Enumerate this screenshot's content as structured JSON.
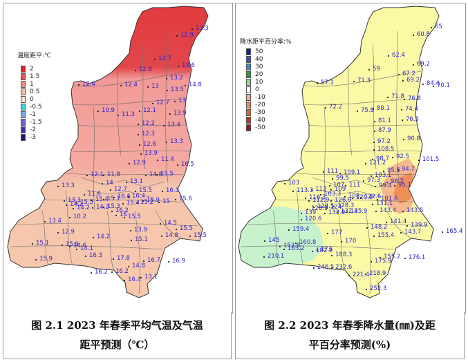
{
  "maps": [
    {
      "legend": {
        "title": "温度距平:℃",
        "items": [
          {
            "label": "2",
            "color": "#d8232a"
          },
          {
            "label": "1.5",
            "color": "#e8535a"
          },
          {
            "label": "1",
            "color": "#f08f86"
          },
          {
            "label": "0.5",
            "color": "#f6b9a6"
          },
          {
            "label": "0",
            "color": "#fbe0cf"
          },
          {
            "label": "-0.5",
            "color": "#3fd0e6"
          },
          {
            "label": "-1",
            "color": "#7aa8e8"
          },
          {
            "label": "-1.5",
            "color": "#6a66cc"
          },
          {
            "label": "-2",
            "color": "#3c32aa"
          },
          {
            "label": "-3",
            "color": "#1a1478"
          }
        ]
      },
      "values": [
        "13.3",
        "12.9",
        "12.7",
        "13.6",
        "12.8",
        "12.4",
        "12.4",
        "13.2",
        "14.8",
        "13",
        "13.5",
        "12.7",
        "13",
        "10.9",
        "11.3",
        "12.1",
        "13.9",
        "13.4",
        "12.2",
        "12.3",
        "12.6",
        "13.3",
        "13.9",
        "11.4",
        "12.9",
        "16.5",
        "12.1",
        "11.8",
        "14.8",
        "15.5",
        "13.3",
        "13.1",
        "14",
        "12.7",
        "16.3",
        "11.6",
        "15.5",
        "16.4",
        "13.3",
        "15.4",
        "14.2",
        "15.5",
        "14.2",
        "15.1",
        "16.6",
        "15.9",
        "15.3",
        "16.2",
        "15.4",
        "15.2",
        "15",
        "15.6",
        "14.2",
        "10.2",
        "16",
        "15.5",
        "13.4",
        "14.5",
        "12.9",
        "13.9",
        "15.5",
        "14.2",
        "15.1",
        "14.8",
        "15.5",
        "15.1",
        "15.9",
        "14.6",
        "14.1",
        "15.9",
        "16.3",
        "17.8",
        "16.7",
        "16.9",
        "14.8",
        "16.2",
        "16.2",
        "16.4",
        "13.1"
      ],
      "caption_line1": "图 2.1   2023 年春季平均气温及气温",
      "caption_line2": "距平预测（℃）"
    },
    {
      "legend": {
        "title": "降水距平百分率:%",
        "items": [
          {
            "label": "50",
            "color": "#1020a0"
          },
          {
            "label": "40",
            "color": "#2a52c8"
          },
          {
            "label": "30",
            "color": "#3a8ad8"
          },
          {
            "label": "20",
            "color": "#2aa02a"
          },
          {
            "label": "10",
            "color": "#8ad88a"
          },
          {
            "label": "0",
            "color": "#ffffff"
          },
          {
            "label": "-10",
            "color": "#f5b48a"
          },
          {
            "label": "-20",
            "color": "#f08a4a"
          },
          {
            "label": "-30",
            "color": "#e8602a"
          },
          {
            "label": "-40",
            "color": "#d03018"
          },
          {
            "label": "-50",
            "color": "#a01010"
          }
        ]
      },
      "values": [
        "65",
        "60.8",
        "62.4",
        "69.2",
        "59",
        "67.2",
        "71.3",
        "69.2",
        "57.1",
        "84.4",
        "70.1",
        "71.8",
        "76.8",
        "72.2",
        "75.8",
        "80.1",
        "74.4",
        "81.1",
        "76.5",
        "87.9",
        "90.8",
        "97.2",
        "108.5",
        "92.5",
        "98.7",
        "101.5",
        "121.2",
        "111",
        "109.1",
        "103.1",
        "95.5",
        "99.5",
        "97.3",
        "94.7",
        "103",
        "107",
        "98.7",
        "113.3",
        "113",
        "109",
        "111",
        "99.4",
        "95.1",
        "116.3",
        "103.3",
        "112.9",
        "126.9",
        "122.6",
        "108",
        "124.5",
        "120.9",
        "128.9",
        "101.6",
        "128.3",
        "131.1",
        "124",
        "143.4",
        "143.5",
        "139",
        "132.9",
        "132.3",
        "145.9",
        "141.4",
        "120.6",
        "139.9",
        "159.4",
        "148.2",
        "165.4",
        "177",
        "155.4",
        "143.7",
        "145",
        "170",
        "153.6",
        "163.2",
        "160.8",
        "182.9",
        "173",
        "210.1",
        "188.3",
        "155.2",
        "176.1",
        "246.5",
        "232.6",
        "175.9",
        "221.4",
        "218.9",
        "252.3"
      ],
      "caption_line1": "图 2.2   2023 年春季降水量(㎜)及距",
      "caption_line2": "平百分率预测(%)"
    }
  ]
}
